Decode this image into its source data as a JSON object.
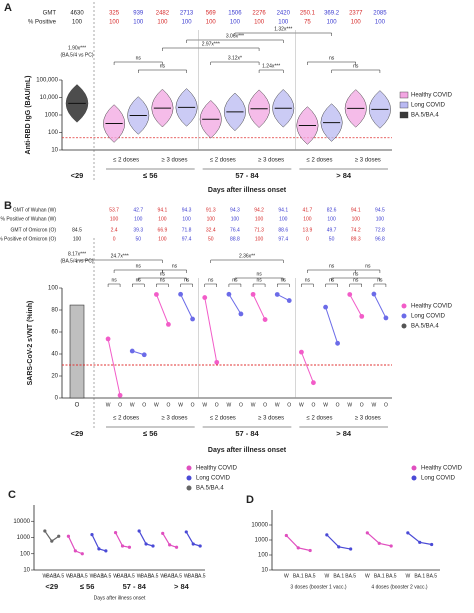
{
  "chart_data": [
    {
      "type": "violin",
      "label": "A",
      "gmt_label": "GMT",
      "gmt": [
        4630,
        325,
        939,
        2482,
        2713,
        569,
        1506,
        2276,
        2420,
        250.1,
        369.2,
        2377,
        2085
      ],
      "positive_label": "% Positive",
      "positive": [
        100,
        100,
        100,
        100,
        100,
        100,
        100,
        100,
        100,
        75,
        100,
        100,
        100
      ],
      "ylabel": "Anti-RBD IgG (BAU/mL)",
      "xlabel": "Days after illness onset",
      "yscale": "log",
      "ylim": [
        10,
        100000
      ],
      "yticks": [
        10,
        100,
        1000,
        {
          "value": 10000,
          "label": "10,000"
        },
        {
          "value": 100000,
          "label": "100,000"
        }
      ],
      "cutoff": 50,
      "groups": [
        "<29",
        "≤ 56",
        "57 - 84",
        "> 84"
      ],
      "subgroups": [
        "≤ 2 doses",
        "≥ 3 doses"
      ],
      "series": [
        {
          "name": "Healthy COVID",
          "color": "#f2a6e2"
        },
        {
          "name": "Long COVID",
          "color": "#b9b9f2"
        },
        {
          "name": "BA.5/BA.4",
          "color": "#3a3a3a"
        }
      ],
      "annotations": [
        "1.90x***",
        "(BA.5/4 vs PC)",
        "2.97x***",
        "3.06x***",
        "3.12x*",
        "1.32x***",
        "1.24x***",
        "ns"
      ]
    },
    {
      "type": "paired",
      "label": "B",
      "w_gmt_label": "GMT of Wuhan (W)",
      "w_gmt": [
        null,
        53.7,
        42.7,
        94.1,
        94.3,
        91.3,
        94.3,
        94.2,
        94.1,
        41.7,
        82.6,
        94.1,
        94.5
      ],
      "w_pos_label": "% Positive of Wuhan (W)",
      "w_pos": [
        null,
        100,
        100,
        100,
        100,
        100,
        100,
        100,
        100,
        100,
        100,
        100,
        100
      ],
      "o_gmt_label": "GMT of Omicron (O)",
      "o_gmt": [
        84.5,
        2.4,
        39.3,
        66.9,
        71.8,
        32.4,
        76.4,
        71.3,
        88.6,
        13.9,
        49.7,
        74.2,
        72.8
      ],
      "o_pos_label": "% Positive of Omicron (O)",
      "o_pos": [
        100,
        0,
        50,
        100,
        97.4,
        50,
        88.8,
        100,
        97.4,
        0,
        50,
        89.3,
        96.8
      ],
      "ylabel": "SARS-CoV-2 sVNT (%inh)",
      "xlabel": "Days after illness onset",
      "ylim": [
        0,
        100
      ],
      "yticks": [
        0,
        20,
        40,
        60,
        80,
        100
      ],
      "cutoff": 30,
      "tick_w": "W",
      "tick_o": "O",
      "groups": [
        "<29",
        "≤ 56",
        "57 - 84",
        "> 84"
      ],
      "subgroups": [
        "≤ 2 doses",
        "≥ 3 doses"
      ],
      "series": [
        {
          "name": "Healthy COVID",
          "color": "#f25cc8"
        },
        {
          "name": "Long COVID",
          "color": "#6b6be8"
        },
        {
          "name": "BA.5/BA.4",
          "color": "#555555"
        }
      ],
      "annotations": [
        "8.17x***",
        "(BA.5/4 vs PC)",
        "24.7x***",
        "2.36x**",
        "ns"
      ]
    },
    {
      "type": "lines",
      "label": "C",
      "xlabel": "Days after illness onset",
      "categories": [
        "W",
        "BA.1",
        "BA.5"
      ],
      "groups": [
        "<29",
        "≤ 56",
        "57 - 84",
        "> 84"
      ],
      "yscale": "log",
      "ylim": [
        10,
        100000
      ],
      "yticks": [
        10,
        100,
        1000,
        10000
      ],
      "series": [
        {
          "name": "Healthy COVID",
          "color": "#e04fbf",
          "values": [
            null,
            [
              1200,
              150,
              100
            ],
            [
              2000,
              300,
              250
            ],
            [
              1800,
              350,
              250
            ]
          ]
        },
        {
          "name": "Long COVID",
          "color": "#4a4ad6",
          "values": [
            null,
            [
              1500,
              200,
              150
            ],
            [
              2500,
              400,
              300
            ],
            [
              2200,
              400,
              300
            ]
          ]
        },
        {
          "name": "BA.5/BA.4",
          "color": "#666666",
          "values": [
            [
              2500,
              600,
              1200
            ],
            null,
            null,
            null
          ]
        }
      ]
    },
    {
      "type": "lines",
      "label": "D",
      "categories": [
        "W",
        "BA.1",
        "BA.5"
      ],
      "groups": [
        "3 doses (booster 1 vacc.)",
        "4 doses (booster 2 vacc.)"
      ],
      "yscale": "log",
      "ylim": [
        10,
        100000
      ],
      "yticks": [
        10,
        100,
        1000,
        10000
      ],
      "series": [
        {
          "name": "Healthy COVID",
          "color": "#e04fbf",
          "values": [
            [
              2000,
              300,
              200
            ],
            [
              3000,
              600,
              400
            ]
          ]
        },
        {
          "name": "Long COVID",
          "color": "#4a4ad6",
          "values": [
            [
              2200,
              350,
              250
            ],
            [
              3000,
              700,
              500
            ]
          ]
        }
      ]
    }
  ]
}
